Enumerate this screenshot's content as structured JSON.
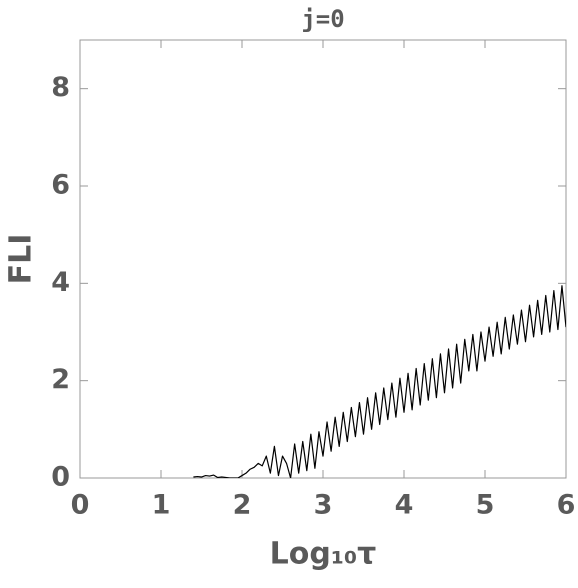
{
  "chart_data": {
    "type": "line",
    "title": "j=0",
    "x_label": "Log₁₀τ",
    "y_label": "FLI",
    "xlim": [
      0,
      6
    ],
    "ylim": [
      0,
      9
    ],
    "xticks": [
      0,
      1,
      2,
      3,
      4,
      5,
      6
    ],
    "yticks": [
      0,
      2,
      4,
      6,
      8
    ],
    "series": [
      {
        "color": "#000000",
        "x": [
          1.4,
          1.45,
          1.5,
          1.55,
          1.6,
          1.65,
          1.7,
          1.75,
          1.8,
          1.85,
          1.9,
          1.95,
          2.0,
          2.05,
          2.1,
          2.15,
          2.2,
          2.25,
          2.3,
          2.35,
          2.4,
          2.45,
          2.5,
          2.55,
          2.6,
          2.65,
          2.7,
          2.75,
          2.8,
          2.85,
          2.9,
          2.95,
          3.0,
          3.05,
          3.1,
          3.15,
          3.2,
          3.25,
          3.3,
          3.35,
          3.4,
          3.45,
          3.5,
          3.55,
          3.6,
          3.65,
          3.7,
          3.75,
          3.8,
          3.85,
          3.9,
          3.95,
          4.0,
          4.05,
          4.1,
          4.15,
          4.2,
          4.25,
          4.3,
          4.35,
          4.4,
          4.45,
          4.5,
          4.55,
          4.6,
          4.65,
          4.7,
          4.75,
          4.8,
          4.85,
          4.9,
          4.95,
          5.0,
          5.05,
          5.1,
          5.15,
          5.2,
          5.25,
          5.3,
          5.35,
          5.4,
          5.45,
          5.5,
          5.55,
          5.6,
          5.65,
          5.7,
          5.75,
          5.8,
          5.85,
          5.9,
          5.95,
          6.0
        ],
        "values": [
          0.02,
          0.03,
          0.02,
          0.05,
          0.04,
          0.06,
          0.01,
          0.02,
          0.01,
          0.0,
          0.0,
          0.0,
          0.05,
          0.1,
          0.18,
          0.22,
          0.3,
          0.25,
          0.45,
          0.1,
          0.65,
          0.05,
          0.45,
          0.3,
          0.0,
          0.7,
          0.1,
          0.75,
          0.15,
          0.9,
          0.2,
          0.95,
          0.45,
          1.15,
          0.55,
          1.25,
          0.65,
          1.35,
          0.75,
          1.45,
          0.85,
          1.55,
          0.9,
          1.65,
          1.0,
          1.75,
          1.1,
          1.85,
          1.2,
          1.95,
          1.25,
          2.05,
          1.35,
          2.15,
          1.4,
          2.25,
          1.5,
          2.35,
          1.6,
          2.45,
          1.65,
          2.55,
          1.75,
          2.65,
          1.85,
          2.75,
          1.95,
          2.85,
          2.2,
          2.95,
          2.2,
          3.0,
          2.4,
          3.1,
          2.5,
          3.2,
          2.55,
          3.3,
          2.65,
          3.35,
          2.75,
          3.45,
          2.8,
          3.55,
          2.9,
          3.65,
          2.95,
          3.75,
          3.0,
          3.85,
          3.05,
          3.95,
          3.1
        ]
      }
    ]
  }
}
